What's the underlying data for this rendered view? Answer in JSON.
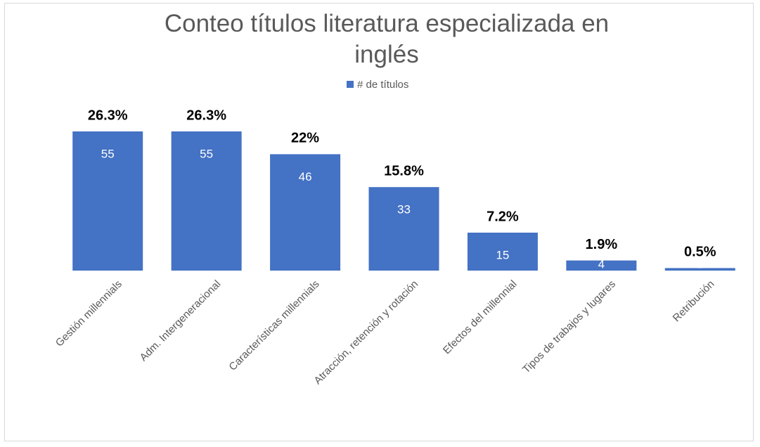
{
  "chart_data": {
    "type": "bar",
    "title": "Conteo títulos literatura especializada en inglés",
    "categories": [
      "Gestión millennials",
      "Adm. Intergeneracional",
      "Características millennials",
      "Atracción, retención y rotación",
      "Efectos del millennial",
      "Tipos de trabajos y lugares",
      "Retribución"
    ],
    "series": [
      {
        "name": "# de títulos",
        "color": "#4472c4",
        "values": [
          55,
          55,
          46,
          33,
          15,
          4,
          1
        ]
      }
    ],
    "percentages": [
      26.3,
      26.3,
      22,
      15.8,
      7.2,
      1.9,
      0.5
    ],
    "percentage_labels": [
      "26.3%",
      "26.3%",
      "22%",
      "15.8%",
      "7.2%",
      "1.9%",
      "0.5%"
    ],
    "ylim": [
      0,
      55
    ]
  }
}
